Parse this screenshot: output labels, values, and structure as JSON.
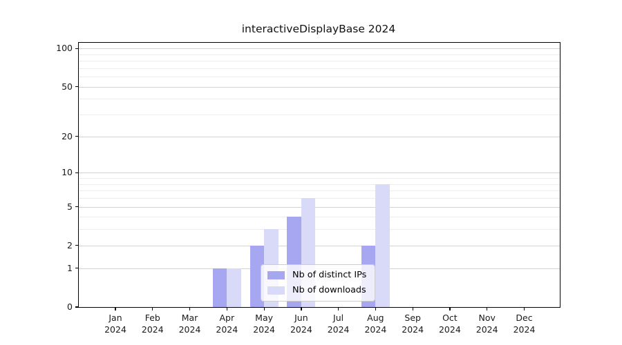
{
  "chart_data": {
    "type": "bar",
    "title": "interactiveDisplayBase 2024",
    "categories": [
      "Jan 2024",
      "Feb 2024",
      "Mar 2024",
      "Apr 2024",
      "May 2024",
      "Jun 2024",
      "Jul 2024",
      "Aug 2024",
      "Sep 2024",
      "Oct 2024",
      "Nov 2024",
      "Dec 2024"
    ],
    "series": [
      {
        "name": "Nb of distinct IPs",
        "color": "#a6a6f1",
        "values": [
          0,
          0,
          0,
          1,
          2,
          4,
          0,
          2,
          0,
          0,
          0,
          0
        ]
      },
      {
        "name": "Nb of downloads",
        "color": "#d9d9f8",
        "values": [
          0,
          0,
          0,
          1,
          3,
          6,
          0,
          8,
          0,
          0,
          0,
          0
        ]
      }
    ],
    "xlabel": "",
    "ylabel": "",
    "yscale": "log1p",
    "ylim": [
      0,
      111
    ],
    "yticks": [
      0,
      1,
      2,
      5,
      10,
      20,
      50,
      100
    ],
    "minor_gridlines": [
      3,
      4,
      6,
      7,
      8,
      9,
      30,
      40,
      60,
      70,
      80,
      90
    ],
    "grid": "on",
    "legend_position": "lower center",
    "colors": {
      "major_grid": "#d3d3d3",
      "minor_grid": "#ededed",
      "frame": "#000000",
      "text": "#1a1a1a",
      "background": "#ffffff"
    }
  }
}
